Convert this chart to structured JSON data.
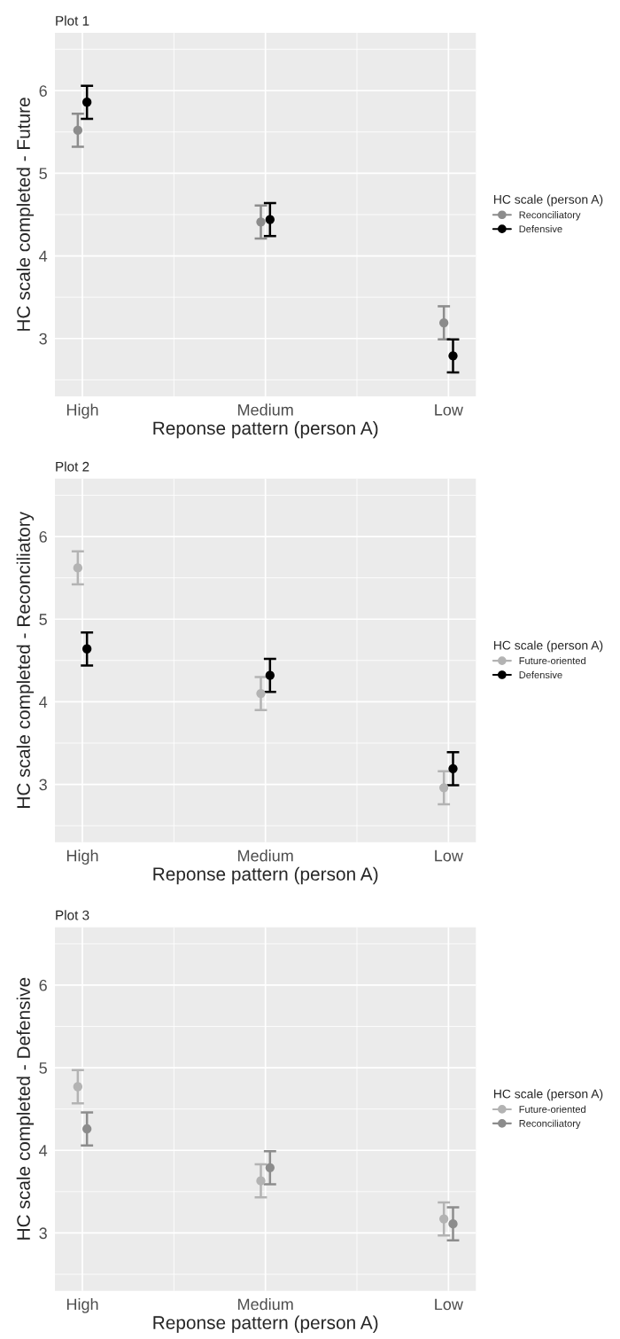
{
  "chart_data": [
    {
      "type": "scatter",
      "title": "Plot 1",
      "xlabel": "Reponse pattern (person A)",
      "ylabel": "HC scale completed - Future",
      "legend_title": "HC scale (person A)",
      "categories": [
        "High",
        "Medium",
        "Low"
      ],
      "ylim": [
        2.3,
        6.7
      ],
      "yticks": [
        3,
        4,
        5,
        6
      ],
      "grid": true,
      "legend": "right",
      "marker": "circle",
      "series": [
        {
          "name": "Reconciliatory",
          "color": "#8c8c8c",
          "values": [
            5.52,
            4.41,
            3.19
          ],
          "errors": [
            0.2,
            0.2,
            0.2
          ]
        },
        {
          "name": "Defensive",
          "color": "#000000",
          "values": [
            5.86,
            4.44,
            2.79
          ],
          "errors": [
            0.2,
            0.2,
            0.2
          ]
        }
      ]
    },
    {
      "type": "scatter",
      "title": "Plot 2",
      "xlabel": "Reponse pattern (person A)",
      "ylabel": "HC scale completed - Reconciliatory",
      "legend_title": "HC scale (person A)",
      "categories": [
        "High",
        "Medium",
        "Low"
      ],
      "ylim": [
        2.3,
        6.7
      ],
      "yticks": [
        3,
        4,
        5,
        6
      ],
      "grid": true,
      "legend": "right",
      "marker": "circle",
      "series": [
        {
          "name": "Future-oriented",
          "color": "#b3b3b3",
          "values": [
            5.62,
            4.1,
            2.96
          ],
          "errors": [
            0.2,
            0.2,
            0.2
          ]
        },
        {
          "name": "Defensive",
          "color": "#000000",
          "values": [
            4.64,
            4.32,
            3.19
          ],
          "errors": [
            0.2,
            0.2,
            0.2
          ]
        }
      ]
    },
    {
      "type": "scatter",
      "title": "Plot 3",
      "xlabel": "Reponse pattern (person A)",
      "ylabel": "HC scale completed - Defensive",
      "legend_title": "HC scale (person A)",
      "categories": [
        "High",
        "Medium",
        "Low"
      ],
      "ylim": [
        2.3,
        6.7
      ],
      "yticks": [
        3,
        4,
        5,
        6
      ],
      "grid": true,
      "legend": "right",
      "marker": "circle",
      "series": [
        {
          "name": "Future-oriented",
          "color": "#b3b3b3",
          "values": [
            4.77,
            3.63,
            3.17
          ],
          "errors": [
            0.2,
            0.2,
            0.2
          ]
        },
        {
          "name": "Reconciliatory",
          "color": "#8c8c8c",
          "values": [
            4.26,
            3.79,
            3.11
          ],
          "errors": [
            0.2,
            0.2,
            0.2
          ]
        }
      ]
    }
  ]
}
